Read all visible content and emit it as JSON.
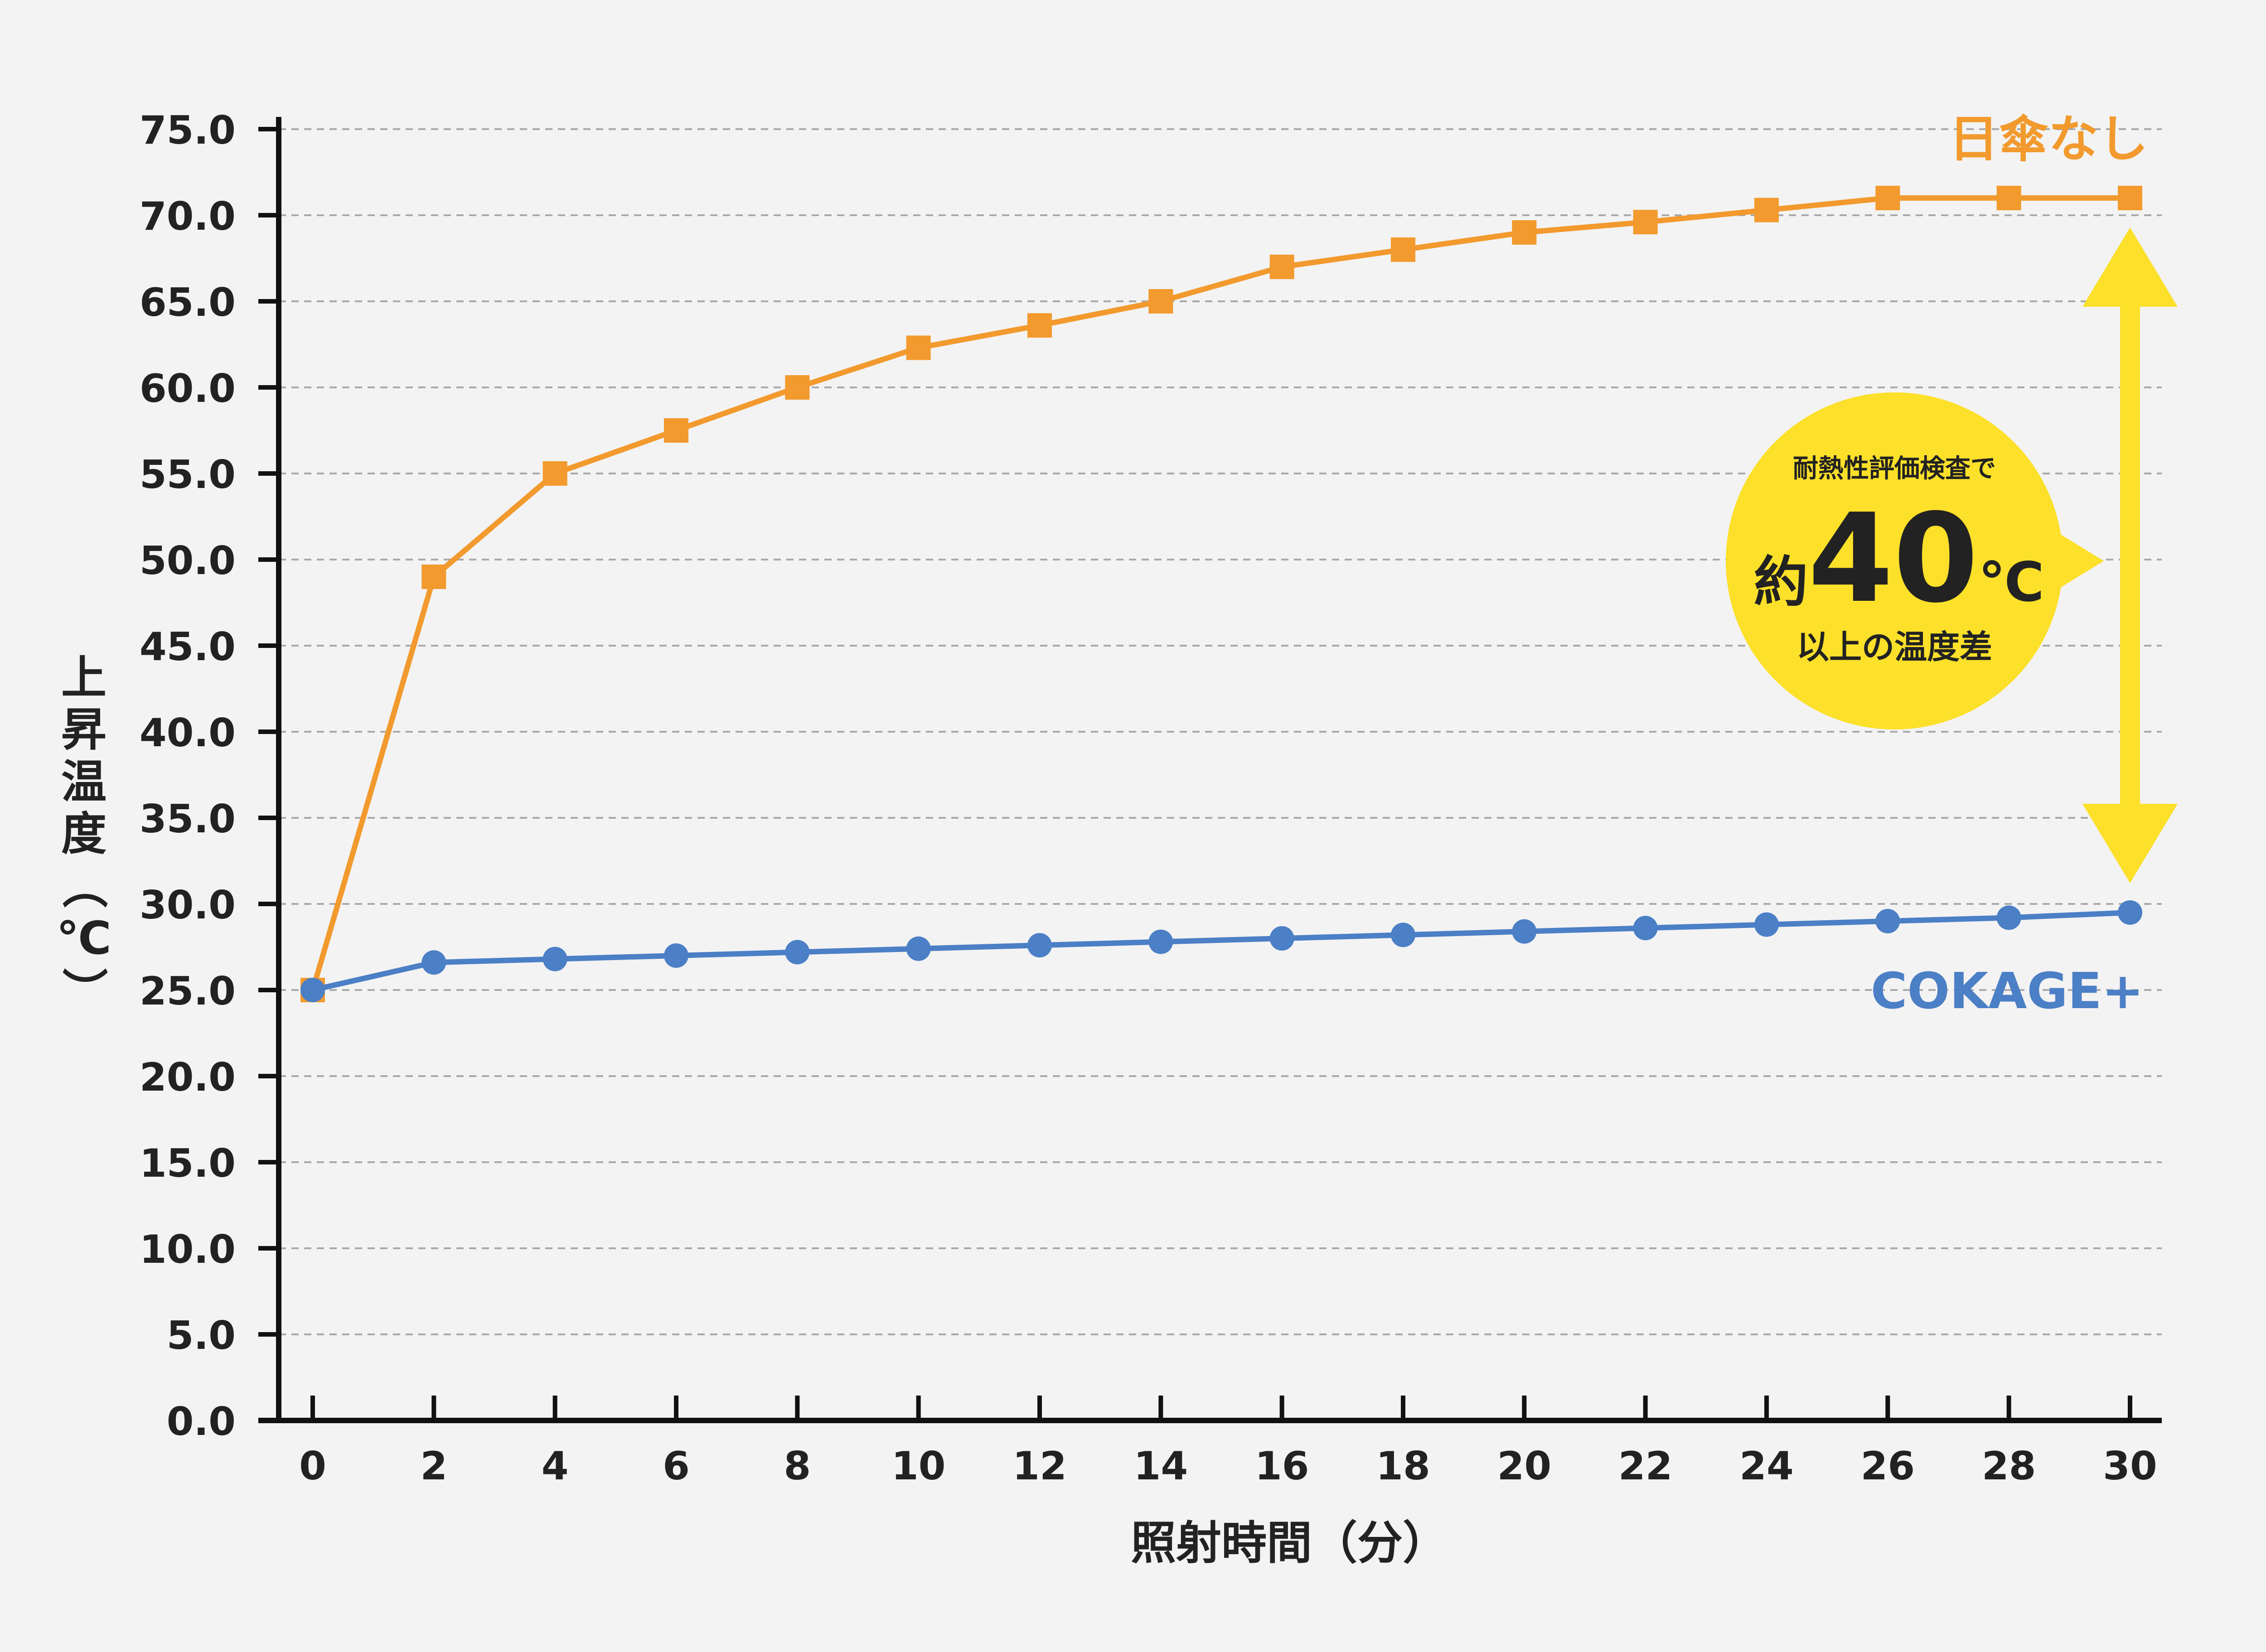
{
  "chart_data": {
    "type": "line",
    "title": "",
    "xlabel": "照射時間（分）",
    "ylabel": "上昇温度（℃）",
    "ylim": [
      0,
      75
    ],
    "yticks": [
      "0.0",
      "5.0",
      "10.0",
      "15.0",
      "20.0",
      "25.0",
      "30.0",
      "35.0",
      "40.0",
      "45.0",
      "50.0",
      "55.0",
      "60.0",
      "65.0",
      "70.0",
      "75.0"
    ],
    "x": [
      0,
      2,
      4,
      6,
      8,
      10,
      12,
      14,
      16,
      18,
      20,
      22,
      24,
      26,
      28,
      30
    ],
    "xticks": [
      "0",
      "2",
      "4",
      "6",
      "8",
      "10",
      "12",
      "14",
      "16",
      "18",
      "20",
      "22",
      "24",
      "26",
      "28",
      "30"
    ],
    "grid": true,
    "series": [
      {
        "name": "日傘なし",
        "color": "#f29a2e",
        "marker": "square",
        "values": [
          25.0,
          49.0,
          55.0,
          57.5,
          60.0,
          62.3,
          63.6,
          65.0,
          67.0,
          68.0,
          69.0,
          69.6,
          70.3,
          71.0,
          71.0,
          71.0
        ]
      },
      {
        "name": "COKAGE+",
        "color": "#4b7fc6",
        "marker": "circle",
        "values": [
          25.0,
          26.6,
          26.8,
          27.0,
          27.2,
          27.4,
          27.6,
          27.8,
          28.0,
          28.2,
          28.4,
          28.6,
          28.8,
          29.0,
          29.2,
          29.5
        ]
      }
    ],
    "annotation": {
      "line1": "耐熱性評価検査で",
      "prefix": "約",
      "value": "40",
      "unit": "℃",
      "line3": "以上の温度差",
      "bubble_color": "#fce02a",
      "arrow_color": "#fce02a"
    }
  }
}
